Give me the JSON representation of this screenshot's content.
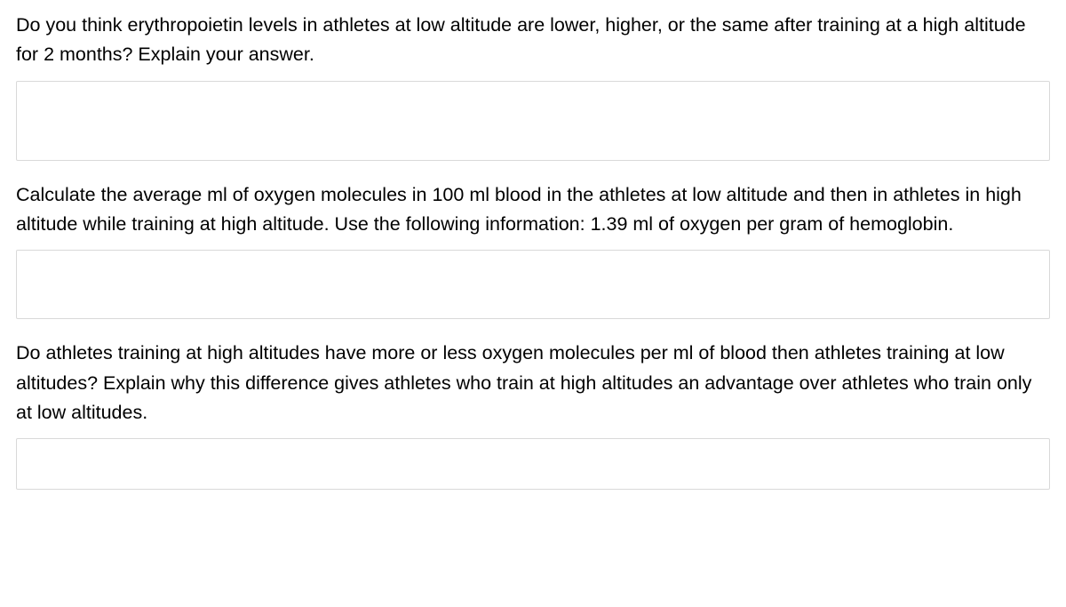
{
  "questions": [
    {
      "prompt": "Do you think erythropoietin levels in athletes at low altitude are lower, higher, or the same after training at a high altitude for 2 months? Explain your answer.",
      "value": "",
      "box_height_class": "h-large"
    },
    {
      "prompt": "Calculate the average ml of oxygen molecules in 100 ml blood in the athletes at low altitude and then in athletes in high altitude while training at high altitude. Use the following information: 1.39 ml of oxygen per gram of hemoglobin.",
      "value": "",
      "box_height_class": "h-medium"
    },
    {
      "prompt": "Do athletes training at high altitudes have more or less oxygen molecules per ml of blood then athletes training at low altitudes? Explain why this difference gives athletes who train at high altitudes an advantage over athletes who train only at low altitudes.",
      "value": "",
      "box_height_class": "h-small"
    }
  ],
  "style": {
    "text_color": "#000000",
    "background_color": "#ffffff",
    "border_color": "#d9d9d9",
    "font_size_pt": 16,
    "line_height": 1.55
  }
}
